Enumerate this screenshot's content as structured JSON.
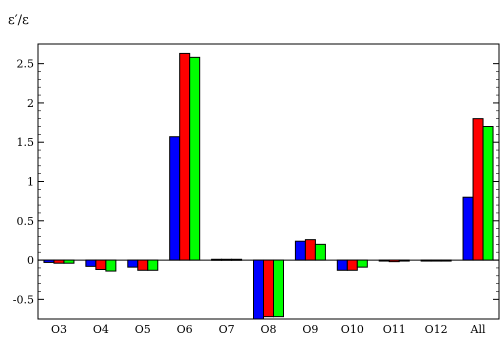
{
  "chart_data": {
    "type": "bar",
    "ylabel": "ε′/ε",
    "xlabel": "",
    "categories": [
      "O3",
      "O4",
      "O5",
      "O6",
      "O7",
      "O8",
      "O9",
      "O10",
      "O11",
      "O12",
      "All"
    ],
    "series": [
      {
        "color": "#0000ff",
        "values": [
          -0.03,
          -0.08,
          -0.09,
          1.57,
          0.01,
          -0.75,
          0.24,
          -0.13,
          -0.01,
          -0.01,
          0.8
        ]
      },
      {
        "color": "#ff0000",
        "values": [
          -0.04,
          -0.12,
          -0.13,
          2.63,
          0.01,
          -0.72,
          0.26,
          -0.13,
          -0.02,
          -0.01,
          1.8
        ]
      },
      {
        "color": "#00ff00",
        "values": [
          -0.04,
          -0.14,
          -0.13,
          2.58,
          0.01,
          -0.72,
          0.2,
          -0.09,
          -0.01,
          -0.01,
          1.7
        ]
      }
    ],
    "yticks": [
      -0.5,
      0,
      0.5,
      1,
      1.5,
      2,
      2.5
    ],
    "ytick_labels": [
      "-0.5",
      "0",
      "0.5",
      "1",
      "1.5",
      "2",
      "2.5"
    ],
    "ylim": [
      -0.75,
      2.75
    ],
    "grid": false,
    "legend": "none"
  }
}
